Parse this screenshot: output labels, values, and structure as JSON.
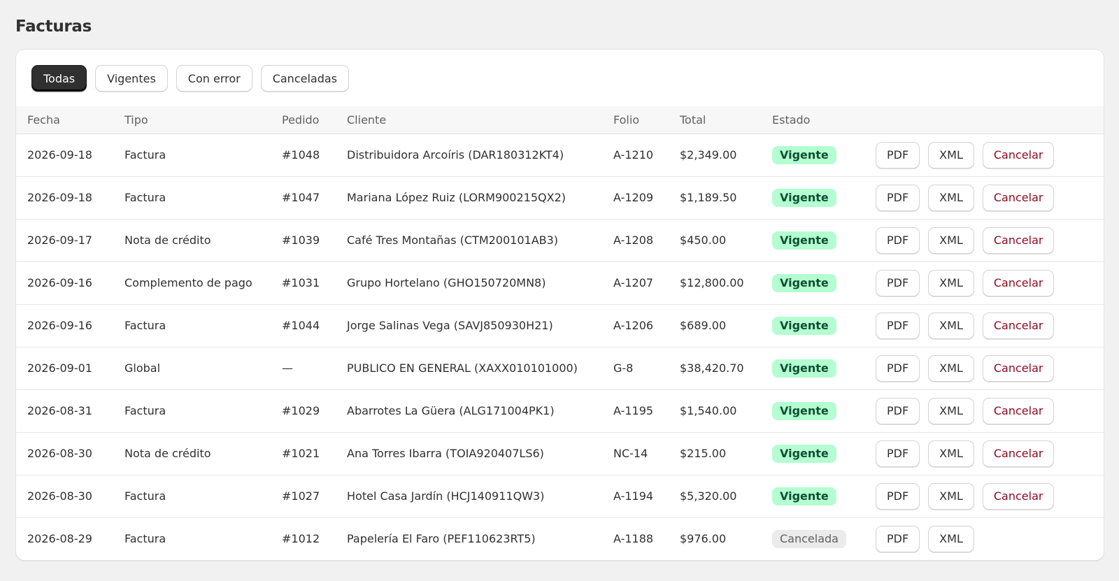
{
  "page": {
    "title": "Facturas"
  },
  "tabs": [
    {
      "label": "Todas",
      "active": true
    },
    {
      "label": "Vigentes",
      "active": false
    },
    {
      "label": "Con error",
      "active": false
    },
    {
      "label": "Canceladas",
      "active": false
    }
  ],
  "table": {
    "headers": [
      "Fecha",
      "Tipo",
      "Pedido",
      "Cliente",
      "Folio",
      "Total",
      "Estado",
      ""
    ],
    "actions": {
      "pdf": "PDF",
      "xml": "XML",
      "cancel": "Cancelar"
    },
    "rows": [
      {
        "fecha": "2026-09-18",
        "tipo": "Factura",
        "pedido": "#1048",
        "cliente": "Distribuidora Arcoíris (DAR180312KT4)",
        "folio": "A-1210",
        "total": "$2,349.00",
        "estado": "Vigente",
        "cancelable": true
      },
      {
        "fecha": "2026-09-18",
        "tipo": "Factura",
        "pedido": "#1047",
        "cliente": "Mariana López Ruiz (LORM900215QX2)",
        "folio": "A-1209",
        "total": "$1,189.50",
        "estado": "Vigente",
        "cancelable": true
      },
      {
        "fecha": "2026-09-17",
        "tipo": "Nota de crédito",
        "pedido": "#1039",
        "cliente": "Café Tres Montañas (CTM200101AB3)",
        "folio": "A-1208",
        "total": "$450.00",
        "estado": "Vigente",
        "cancelable": true
      },
      {
        "fecha": "2026-09-16",
        "tipo": "Complemento de pago",
        "pedido": "#1031",
        "cliente": "Grupo Hortelano (GHO150720MN8)",
        "folio": "A-1207",
        "total": "$12,800.00",
        "estado": "Vigente",
        "cancelable": true
      },
      {
        "fecha": "2026-09-16",
        "tipo": "Factura",
        "pedido": "#1044",
        "cliente": "Jorge Salinas Vega (SAVJ850930H21)",
        "folio": "A-1206",
        "total": "$689.00",
        "estado": "Vigente",
        "cancelable": true
      },
      {
        "fecha": "2026-09-01",
        "tipo": "Global",
        "pedido": "—",
        "cliente": "PUBLICO EN GENERAL (XAXX010101000)",
        "folio": "G-8",
        "total": "$38,420.70",
        "estado": "Vigente",
        "cancelable": true
      },
      {
        "fecha": "2026-08-31",
        "tipo": "Factura",
        "pedido": "#1029",
        "cliente": "Abarrotes La Güera (ALG171004PK1)",
        "folio": "A-1195",
        "total": "$1,540.00",
        "estado": "Vigente",
        "cancelable": true
      },
      {
        "fecha": "2026-08-30",
        "tipo": "Nota de crédito",
        "pedido": "#1021",
        "cliente": "Ana Torres Ibarra (TOIA920407LS6)",
        "folio": "NC-14",
        "total": "$215.00",
        "estado": "Vigente",
        "cancelable": true
      },
      {
        "fecha": "2026-08-30",
        "tipo": "Factura",
        "pedido": "#1027",
        "cliente": "Hotel Casa Jardín (HCJ140911QW3)",
        "folio": "A-1194",
        "total": "$5,320.00",
        "estado": "Vigente",
        "cancelable": true
      },
      {
        "fecha": "2026-08-29",
        "tipo": "Factura",
        "pedido": "#1012",
        "cliente": "Papelería El Faro (PEF110623RT5)",
        "folio": "A-1188",
        "total": "$976.00",
        "estado": "Cancelada",
        "cancelable": false
      }
    ]
  }
}
